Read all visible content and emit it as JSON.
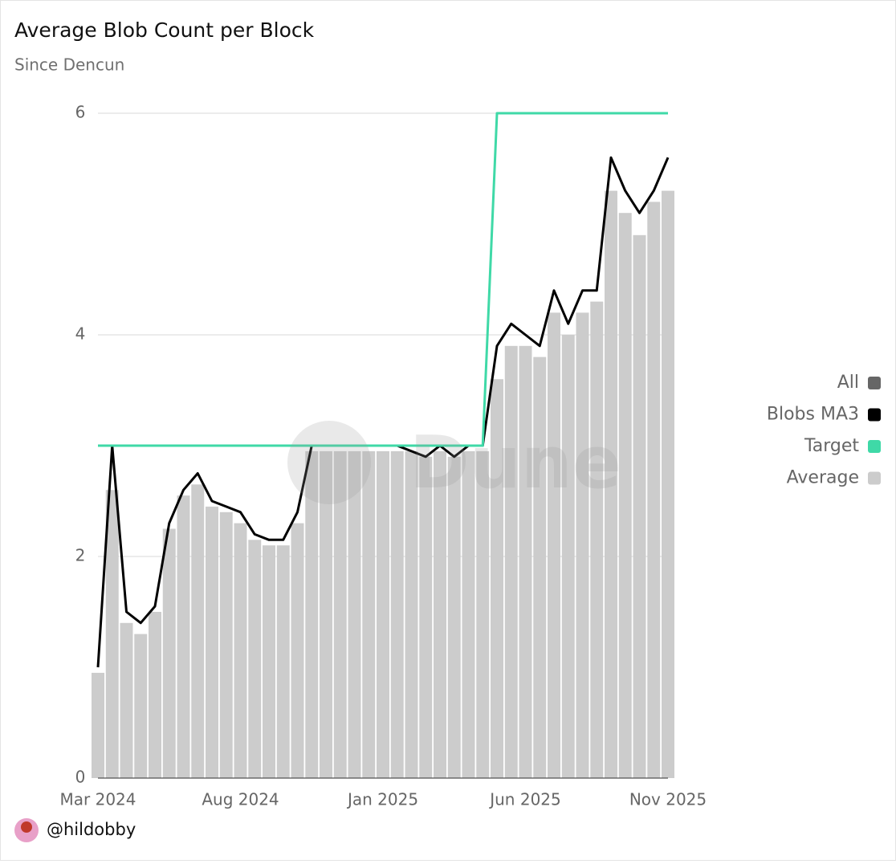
{
  "chart_data": {
    "type": "combo",
    "title": "Average Blob Count per Block",
    "subtitle": "Since Dencun",
    "categories": [
      "Mar 2024",
      null,
      null,
      null,
      null,
      null,
      null,
      null,
      null,
      null,
      "Aug 2024",
      null,
      null,
      null,
      null,
      null,
      null,
      null,
      null,
      null,
      "Jan 2025",
      null,
      null,
      null,
      null,
      null,
      null,
      null,
      null,
      null,
      "Jun 2025",
      null,
      null,
      null,
      null,
      null,
      null,
      null,
      null,
      null,
      "Nov 2025"
    ],
    "series": [
      {
        "name": "Blobs MA3",
        "kind": "line",
        "color": "#000000",
        "values": [
          1.0,
          3.0,
          1.5,
          1.4,
          1.55,
          2.3,
          2.6,
          2.75,
          2.5,
          2.45,
          2.4,
          2.2,
          2.15,
          2.15,
          2.4,
          3.0,
          3.0,
          3.0,
          3.0,
          3.0,
          3.0,
          3.0,
          2.95,
          2.9,
          3.0,
          2.9,
          3.0,
          3.0,
          3.9,
          4.1,
          4.0,
          3.9,
          4.4,
          4.1,
          4.4,
          4.4,
          5.6,
          5.3,
          5.1,
          5.3,
          5.6
        ]
      },
      {
        "name": "Target",
        "kind": "line",
        "color": "#3fd9a7",
        "values": [
          3,
          3,
          3,
          3,
          3,
          3,
          3,
          3,
          3,
          3,
          3,
          3,
          3,
          3,
          3,
          3,
          3,
          3,
          3,
          3,
          3,
          3,
          3,
          3,
          3,
          3,
          3,
          3,
          6,
          6,
          6,
          6,
          6,
          6,
          6,
          6,
          6,
          6,
          6,
          6,
          6
        ]
      },
      {
        "name": "Average",
        "kind": "bar",
        "color": "#cccccc",
        "values": [
          0.95,
          2.6,
          1.4,
          1.3,
          1.5,
          2.25,
          2.55,
          2.65,
          2.45,
          2.4,
          2.3,
          2.15,
          2.1,
          2.1,
          2.3,
          2.95,
          2.95,
          2.95,
          2.95,
          2.95,
          2.95,
          2.95,
          2.95,
          2.9,
          2.95,
          2.9,
          2.95,
          2.95,
          3.6,
          3.9,
          3.9,
          3.8,
          4.2,
          4.0,
          4.2,
          4.3,
          5.3,
          5.1,
          4.9,
          5.2,
          5.3
        ]
      }
    ],
    "ylim": [
      0,
      6
    ],
    "yticks": [
      0,
      2,
      4,
      6
    ],
    "grid": true,
    "legend_all_label": "All",
    "legend_all_color": "#666666",
    "legend_position": "right",
    "watermark": "Dune",
    "author": "@hildobby"
  }
}
